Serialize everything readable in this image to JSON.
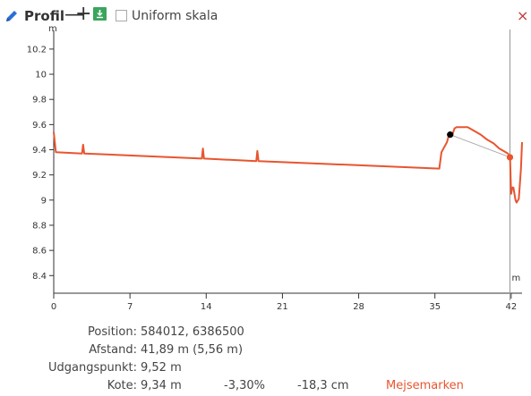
{
  "toolbar": {
    "title": "Profil",
    "minus_glyph": "—",
    "plus_glyph": "+",
    "download_icon": "download-icon",
    "checkbox_label": "Uniform skala",
    "checkbox_checked": false,
    "close_glyph": "×",
    "accent_blue": "#2a6fd6",
    "download_green": "#3aa55c",
    "close_red": "#c43c3c"
  },
  "chart_data": {
    "type": "line",
    "y_unit": "m",
    "x_unit": "m",
    "ylim": [
      8.26,
      10.32
    ],
    "xlim": [
      0,
      43
    ],
    "y_ticks": [
      "8.4",
      "8.6",
      "8.8",
      "9",
      "9.2",
      "9.4",
      "9.6",
      "9.8",
      "10",
      "10.2"
    ],
    "x_ticks": [
      "0",
      "7",
      "14",
      "21",
      "28",
      "35",
      "42"
    ],
    "line_color": "#e8552f",
    "series": [
      {
        "x": [
          0,
          0.2,
          2.6,
          2.7,
          2.8,
          13.6,
          13.7,
          13.8,
          18.6,
          18.7,
          18.8,
          35.4,
          35.6,
          36.1,
          36.3,
          36.6,
          36.8,
          37.0,
          38.0,
          38.6,
          39.2,
          39.8,
          40.4,
          40.9,
          41.3,
          41.7,
          41.9,
          42.0,
          42.1,
          42.2,
          42.4,
          42.5,
          42.7,
          42.9,
          43.0
        ],
        "y": [
          9.54,
          9.38,
          9.37,
          9.44,
          9.37,
          9.33,
          9.41,
          9.33,
          9.31,
          9.39,
          9.31,
          9.25,
          9.38,
          9.46,
          9.52,
          9.52,
          9.57,
          9.58,
          9.58,
          9.55,
          9.52,
          9.48,
          9.45,
          9.41,
          9.39,
          9.37,
          9.34,
          9.05,
          9.1,
          9.1,
          9.0,
          8.98,
          9.01,
          9.25,
          9.46
        ]
      }
    ],
    "markers": [
      {
        "name": "udgangspunkt",
        "x": 36.4,
        "y": 9.52,
        "color": "#000000"
      },
      {
        "name": "mejsemarken",
        "x": 41.89,
        "y": 9.34,
        "color": "#e8552f"
      }
    ],
    "connector_color": "#aaaaaa",
    "vertical_marker_x": 41.89
  },
  "info": {
    "position_label": "Position:",
    "position_value": "584012, 6386500",
    "afstand_label": "Afstand:",
    "afstand_value": "41,89 m (5,56 m)",
    "udgangspunkt_label": "Udgangspunkt:",
    "udgangspunkt_value": "9,52 m",
    "kote_label": "Kote:",
    "kote_value": "9,34 m",
    "slope_value": "-3,30%",
    "diff_value": "-18,3 cm",
    "mejsemarken": "Mejsemarken"
  }
}
